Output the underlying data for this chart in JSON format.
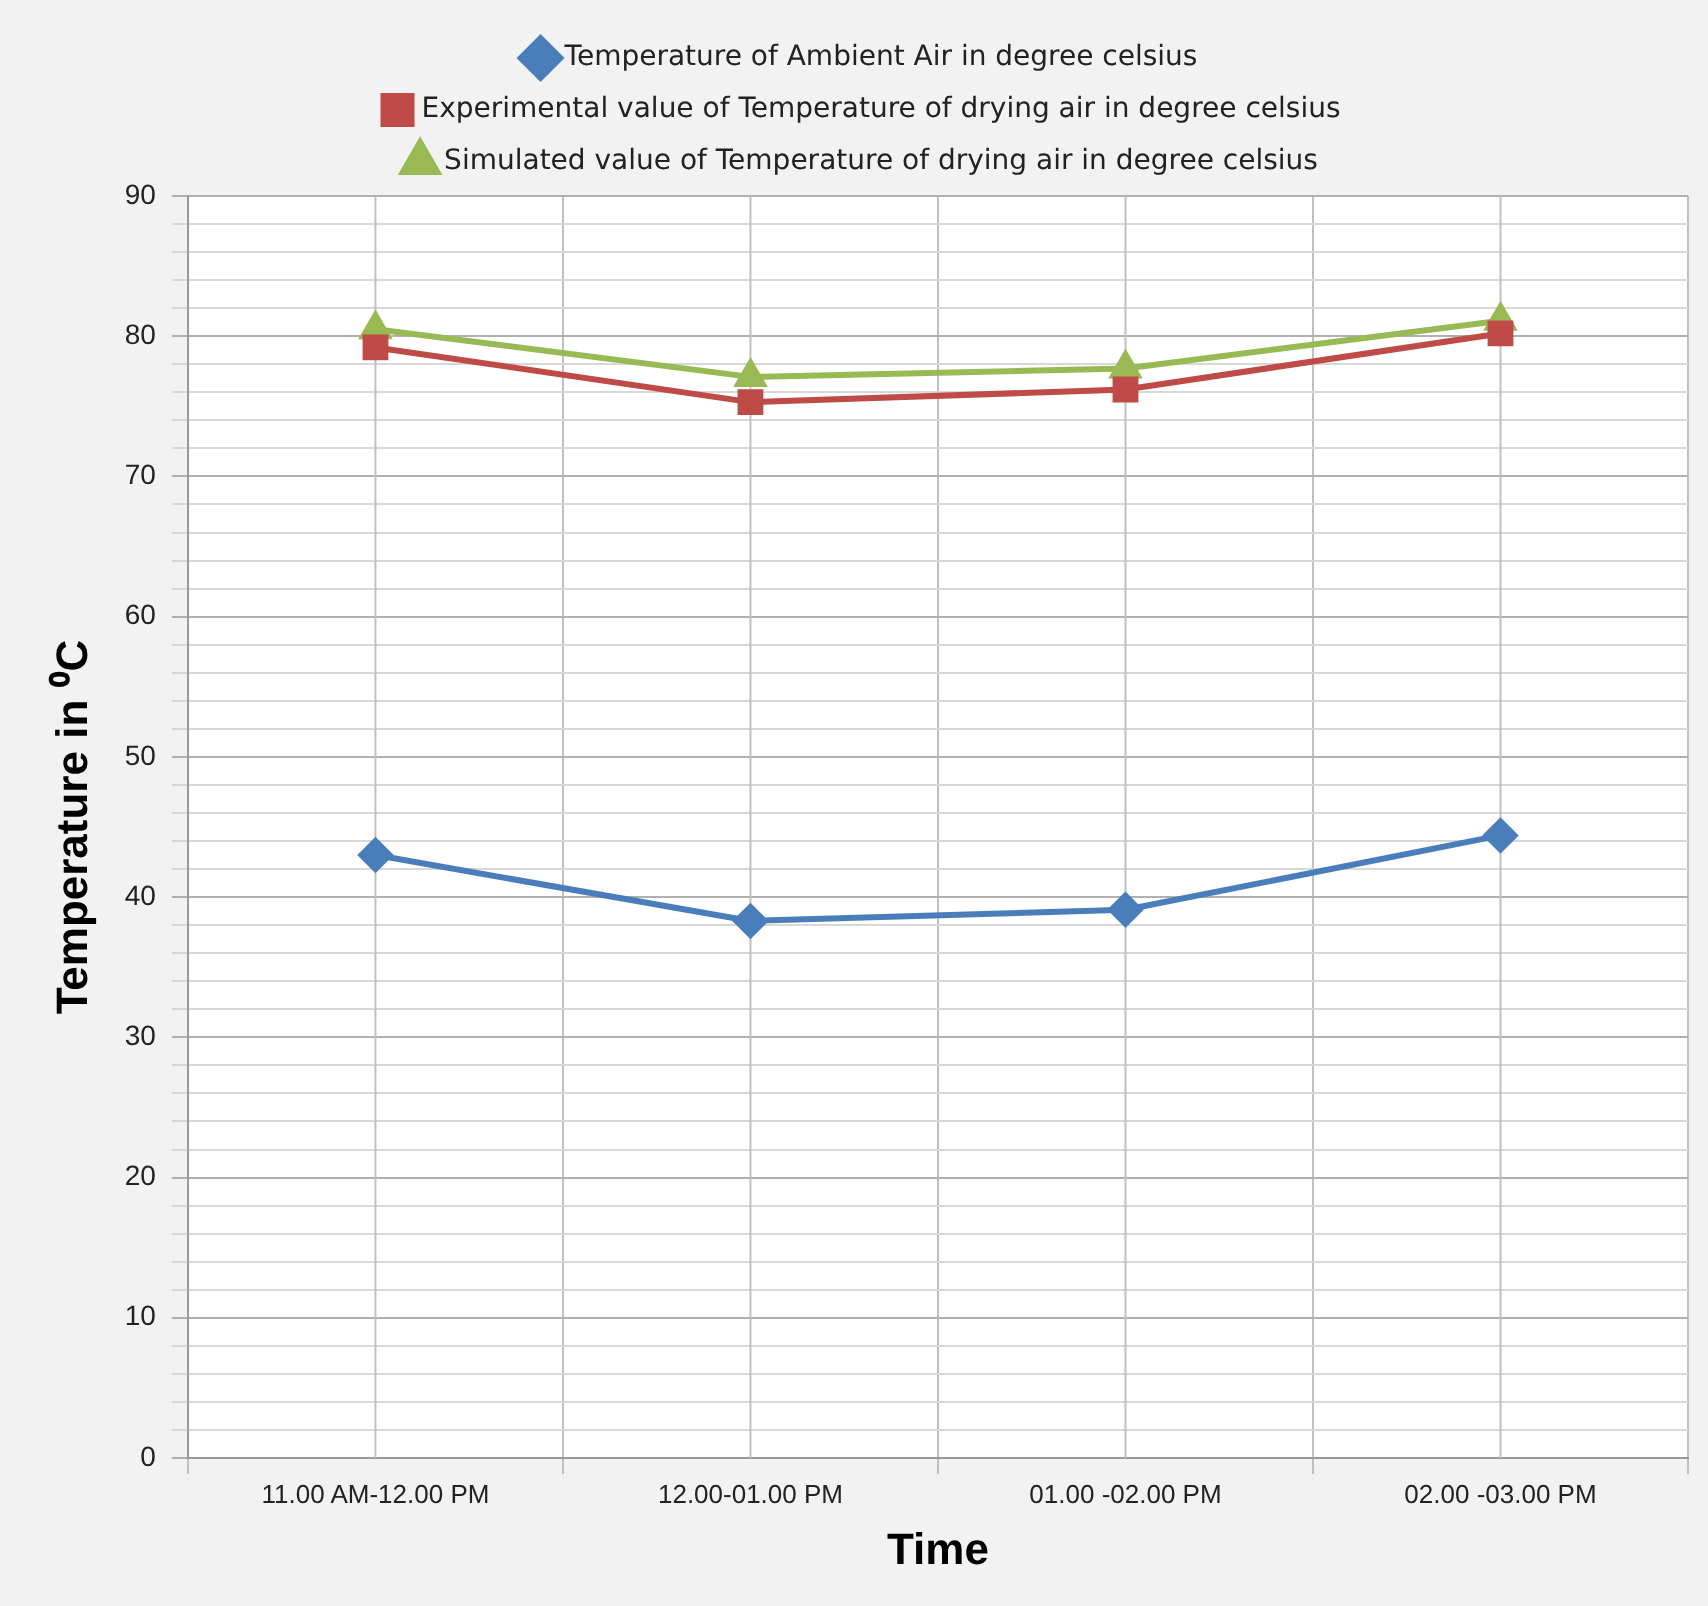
{
  "chart_data": {
    "type": "line",
    "xlabel": "Time",
    "ylabel": "Temperature in ⁰C",
    "categories": [
      "11.00 AM-12.00 PM",
      "12.00-01.00 PM",
      "01.00 -02.00 PM",
      "02.00 -03.00 PM"
    ],
    "series": [
      {
        "name": "Temperature of Ambient Air in degree celsius",
        "color": "#4a7ebb",
        "marker": "diamond",
        "values": [
          43.0,
          38.3,
          39.1,
          44.4
        ]
      },
      {
        "name": "Experimental value of Temperature of drying air in degree celsius",
        "color": "#be4b48",
        "marker": "square",
        "values": [
          79.2,
          75.3,
          76.2,
          80.2
        ]
      },
      {
        "name": "Simulated value of Temperature of drying air in degree celsius",
        "color": "#98b954",
        "marker": "triangle",
        "values": [
          80.5,
          77.1,
          77.7,
          81.1
        ]
      }
    ],
    "ylim": [
      0,
      90
    ],
    "yticks": [
      0,
      {
        "value": 2,
        "label": null
      },
      {
        "value": 4,
        "label": null
      },
      {
        "value": 6,
        "label": null
      },
      {
        "value": 8,
        "label": null
      },
      10,
      {
        "value": 12,
        "label": null
      },
      {
        "value": 14,
        "label": null
      },
      {
        "value": 16,
        "label": null
      },
      {
        "value": 18,
        "label": null
      },
      20,
      {
        "value": 22,
        "label": null
      },
      {
        "value": 24,
        "label": null
      },
      {
        "value": 26,
        "label": null
      },
      {
        "value": 28,
        "label": null
      },
      30,
      {
        "value": 32,
        "label": null
      },
      {
        "value": 34,
        "label": null
      },
      {
        "value": 36,
        "label": null
      },
      {
        "value": 38,
        "label": null
      },
      40,
      {
        "value": 42,
        "label": null
      },
      {
        "value": 44,
        "label": null
      },
      {
        "value": 46,
        "label": null
      },
      {
        "value": 48,
        "label": null
      },
      50,
      {
        "value": 52,
        "label": null
      },
      {
        "value": 54,
        "label": null
      },
      {
        "value": 56,
        "label": null
      },
      {
        "value": 58,
        "label": null
      },
      60,
      {
        "value": 62,
        "label": null
      },
      {
        "value": 64,
        "label": null
      },
      {
        "value": 66,
        "label": null
      },
      {
        "value": 68,
        "label": null
      },
      70,
      {
        "value": 72,
        "label": null
      },
      {
        "value": 74,
        "label": null
      },
      {
        "value": 76,
        "label": null
      },
      {
        "value": 78,
        "label": null
      },
      80,
      {
        "value": 82,
        "label": null
      },
      {
        "value": 84,
        "label": null
      },
      {
        "value": 86,
        "label": null
      },
      {
        "value": 88,
        "label": null
      },
      90
    ],
    "grid": true,
    "legend": "top",
    "line_style": "solid"
  }
}
